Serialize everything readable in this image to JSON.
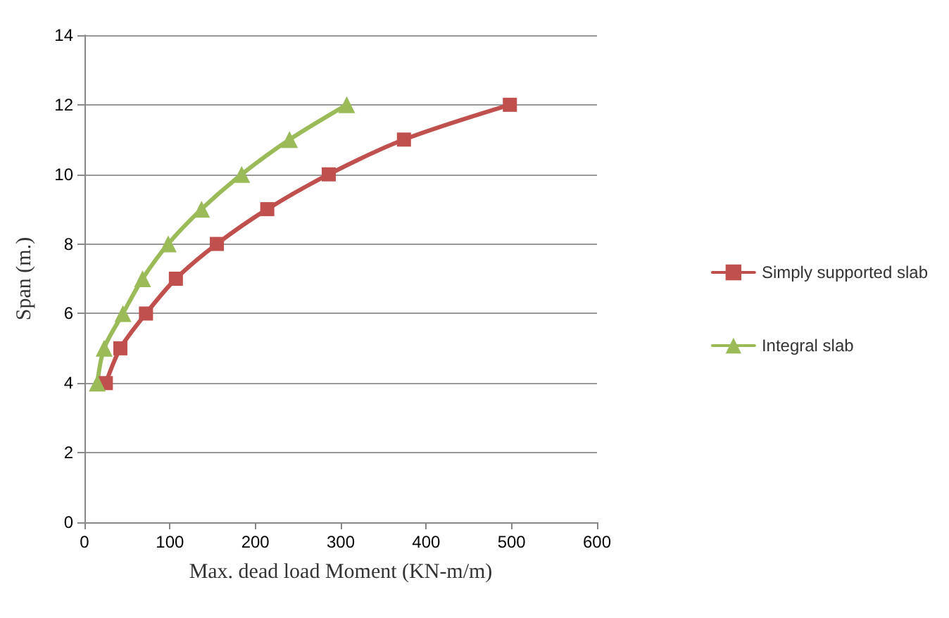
{
  "chart_data": {
    "type": "line",
    "xlabel": "Max. dead load Moment (KN-m/m)",
    "ylabel": "Span (m.)",
    "xlim": [
      0,
      600
    ],
    "xticks": [
      0,
      100,
      200,
      300,
      400,
      500,
      600
    ],
    "ylim": [
      0,
      14
    ],
    "yticks": [
      0,
      2,
      4,
      6,
      8,
      10,
      12,
      14
    ],
    "grid": "y",
    "legend": "right",
    "tick_labels": "xy",
    "series": [
      {
        "name": "Simply supported slab",
        "color": "#c0504d",
        "marker": "square",
        "x": [
          25,
          42,
          72,
          107,
          155,
          214,
          286,
          374,
          498
        ],
        "values": [
          4,
          5,
          6,
          7,
          8,
          9,
          10,
          11,
          12
        ]
      },
      {
        "name": "Integral slab",
        "color": "#9bbb59",
        "marker": "triangle",
        "x": [
          15,
          23,
          45,
          68,
          98,
          137,
          184,
          240,
          307
        ],
        "values": [
          4,
          5,
          6,
          7,
          8,
          9,
          10,
          11,
          12
        ]
      }
    ]
  }
}
